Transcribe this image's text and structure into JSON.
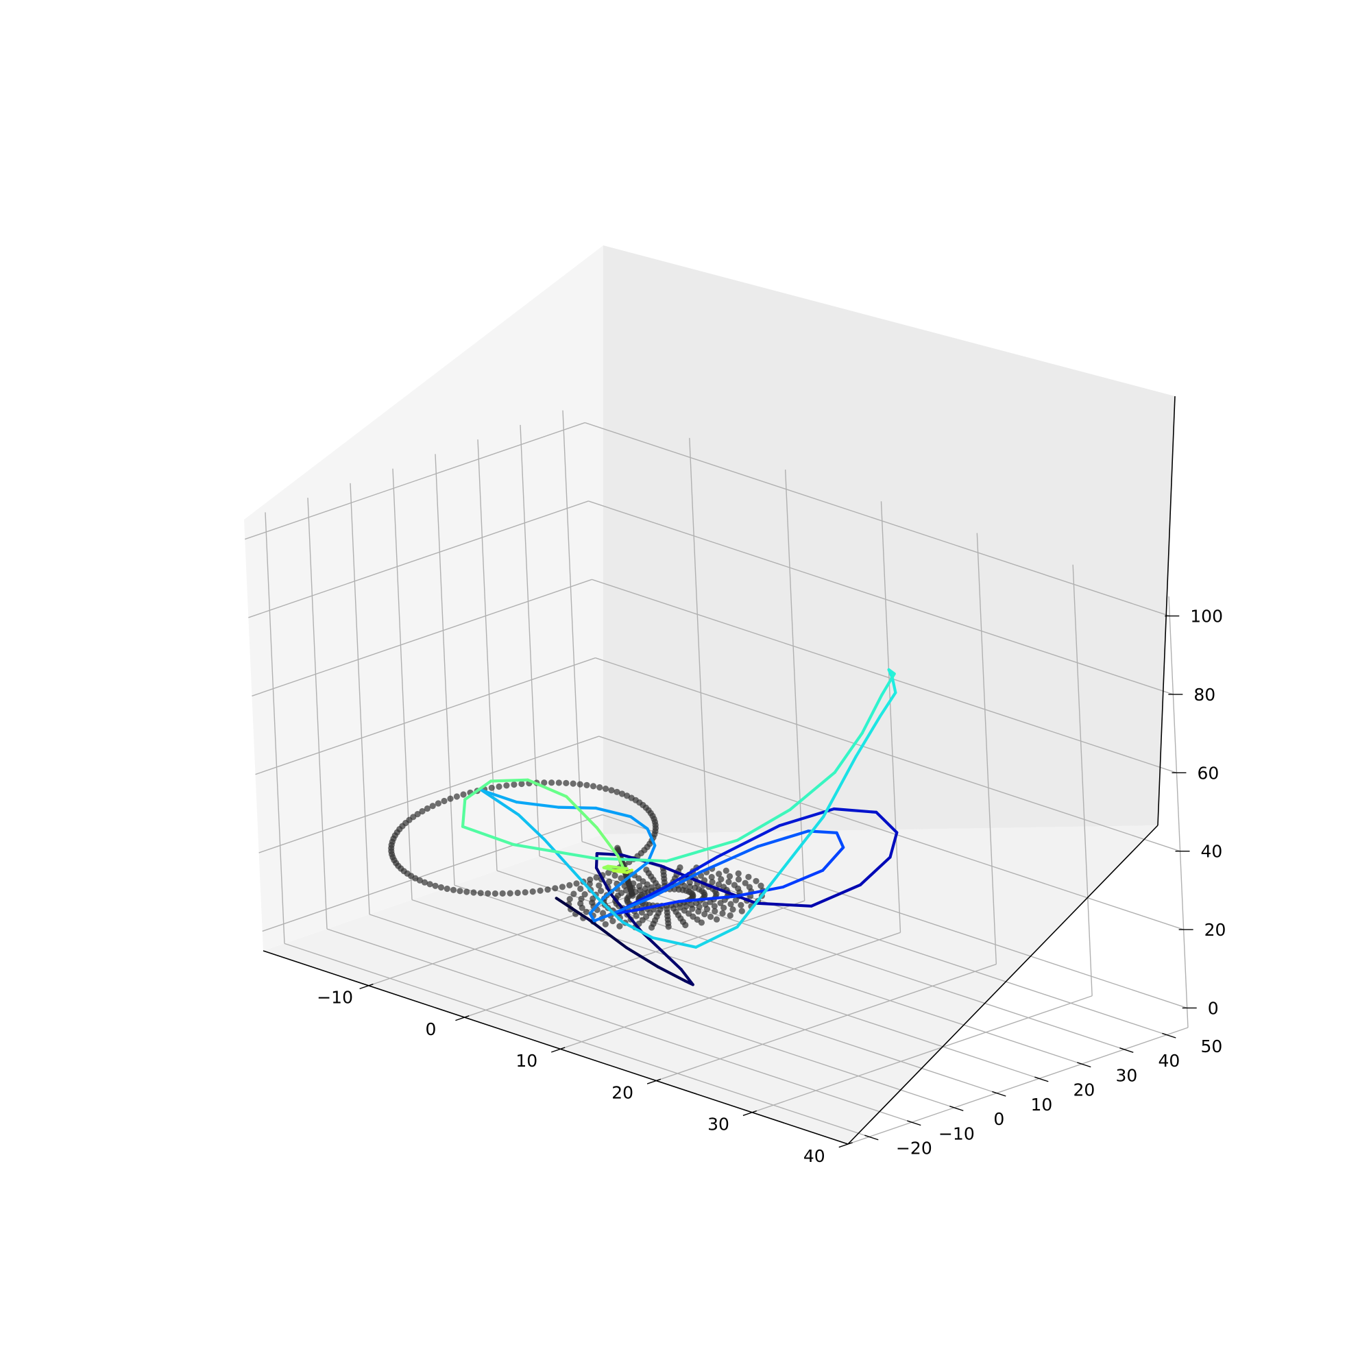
{
  "chart_data": {
    "type": "line",
    "projection": "3d",
    "grid": true,
    "legend": "none",
    "title": "",
    "xlabel": "",
    "ylabel": "",
    "zlabel": "",
    "xlim": [
      -21,
      40
    ],
    "ylim": [
      -25,
      55
    ],
    "zlim": [
      -5,
      105
    ],
    "x_ticks": [
      -10,
      0,
      10,
      20,
      30,
      40
    ],
    "x_tick_labels": [
      "−10",
      "0",
      "10",
      "20",
      "30",
      "40"
    ],
    "y_ticks": [
      -20,
      -10,
      0,
      10,
      20,
      30,
      40,
      50
    ],
    "y_tick_labels": [
      "−20",
      "−10",
      "0",
      "10",
      "20",
      "30",
      "40",
      "50"
    ],
    "z_ticks": [
      0,
      20,
      40,
      60,
      80,
      100
    ],
    "z_tick_labels": [
      "0",
      "20",
      "40",
      "60",
      "80",
      "100"
    ],
    "pane_colors": {
      "floor": "#f2f2f2",
      "back_wall": "#ebebeb",
      "side_wall": "#f5f5f5"
    },
    "grid_color": "#b0b0b0",
    "colormap": [
      "#000040",
      "#0000a0",
      "#0028ff",
      "#0080ff",
      "#10c0f0",
      "#20f0e0",
      "#60ff90",
      "#c0ff30"
    ],
    "series": [
      {
        "kind": "line",
        "style": "colormapped trajectory (dark navy → blue → cyan → yellow-green)",
        "x": [
          8,
          10,
          12,
          13,
          13.5,
          12,
          9,
          4,
          1,
          0.5,
          2,
          6,
          11,
          16,
          20,
          24,
          27,
          28,
          27,
          24,
          20,
          16,
          12,
          9,
          7,
          8,
          11,
          15,
          19,
          22,
          24,
          24,
          22,
          19,
          15,
          11,
          8,
          6,
          5.5,
          6,
          8,
          10,
          11,
          10,
          7,
          3,
          -2,
          -6,
          -9,
          -10,
          -9,
          -6,
          -2,
          2,
          6,
          10,
          14,
          18,
          23,
          27,
          30,
          33,
          34,
          34,
          33,
          30,
          26,
          22,
          16,
          11,
          7,
          3,
          0,
          -3,
          -6,
          -10,
          -13,
          -14,
          -13,
          -10,
          -6,
          -2,
          1,
          2,
          1,
          -1,
          -1,
          1,
          1,
          0,
          1,
          1.5,
          1.5
        ],
        "y": [
          -20,
          -17,
          -13,
          -8,
          -3,
          2,
          6,
          8,
          8,
          6,
          3,
          0,
          -2,
          -2,
          0,
          4,
          9,
          14,
          18,
          20,
          19,
          15,
          9,
          3,
          -2,
          -6,
          -8,
          -7,
          -3,
          2,
          7,
          12,
          15,
          15,
          12,
          7,
          2,
          -3,
          -6,
          -8,
          -9,
          -8,
          -5,
          -1,
          4,
          9,
          12,
          12,
          9,
          5,
          1,
          -3,
          -6,
          -9,
          -12,
          -15,
          -18,
          -20,
          -21,
          -20,
          -17,
          -12,
          -6,
          0,
          6,
          12,
          20,
          30,
          40,
          46,
          48,
          46,
          40,
          30,
          20,
          10,
          5,
          8,
          12,
          14,
          14,
          12,
          10,
          9,
          10,
          11,
          12,
          12,
          11,
          11,
          12,
          12,
          12
        ],
        "z": [
          30,
          25,
          18,
          12,
          7,
          3,
          3,
          8,
          15,
          22,
          28,
          32,
          34,
          33,
          31,
          32,
          38,
          44,
          48,
          50,
          48,
          42,
          33,
          25,
          20,
          21,
          25,
          30,
          33,
          36,
          40,
          44,
          45,
          43,
          37,
          29,
          22,
          18,
          17,
          20,
          26,
          32,
          36,
          38,
          38,
          36,
          33,
          30,
          30,
          33,
          36,
          38,
          38,
          36,
          33,
          30,
          28,
          28,
          30,
          38,
          52,
          68,
          82,
          90,
          93,
          92,
          88,
          80,
          66,
          50,
          36,
          24,
          16,
          12,
          14,
          18,
          22,
          27,
          31,
          33,
          32,
          28,
          24,
          22,
          20,
          19,
          19,
          20,
          20,
          19,
          19,
          20,
          20
        ]
      },
      {
        "kind": "scatter",
        "style": "dark grey dots",
        "color": "#333333",
        "points": "sampled along a two-lobed (butterfly) trajectory: a large left lobe centred near x=-8, y=8 and a dense right lobe centred near x=10, y=0, z from about 10 to 40"
      }
    ]
  }
}
